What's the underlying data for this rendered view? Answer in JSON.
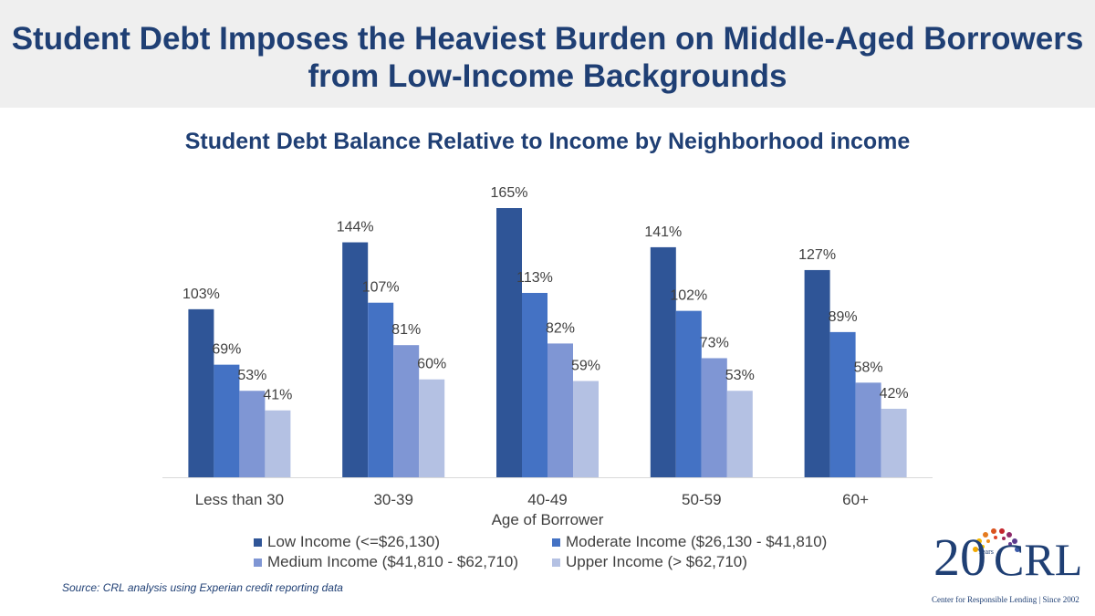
{
  "header": {
    "title_line1": "Student Debt Imposes the Heaviest Burden on Middle-Aged Borrowers",
    "title_line2": "from Low-Income Backgrounds"
  },
  "chart_data": {
    "type": "bar",
    "title": "Student Debt Balance Relative to Income by Neighborhood income",
    "xlabel": "Age of Borrower",
    "ylabel": "",
    "ylim": [
      0,
      180
    ],
    "categories": [
      "Less than 30",
      "30-39",
      "40-49",
      "50-59",
      "60+"
    ],
    "series": [
      {
        "name": "Low Income (<=$26,130)",
        "color": "#2f5597",
        "values": [
          103,
          144,
          165,
          141,
          127
        ],
        "labels": [
          "103%",
          "144%",
          "165%",
          "141%",
          "127%"
        ]
      },
      {
        "name": "Moderate Income ($26,130 - $41,810)",
        "color": "#4472c4",
        "values": [
          69,
          107,
          113,
          102,
          89
        ],
        "labels": [
          "69%",
          "107%",
          "113%",
          "102%",
          "89%"
        ]
      },
      {
        "name": "Medium Income ($41,810 - $62,710)",
        "color": "#7f96d4",
        "values": [
          53,
          81,
          82,
          73,
          58
        ],
        "labels": [
          "53%",
          "81%",
          "82%",
          "73%",
          "58%"
        ]
      },
      {
        "name": "Upper Income (> $62,710)",
        "color": "#b4c1e3",
        "values": [
          41,
          60,
          59,
          53,
          42
        ],
        "labels": [
          "41%",
          "60%",
          "59%",
          "53%",
          "42%"
        ]
      }
    ],
    "legend_position": "bottom",
    "grid": false
  },
  "footer": {
    "source": "Source: CRL analysis using Experian credit reporting data"
  },
  "logo": {
    "number": "20",
    "years_text": "Years",
    "brand": "CRL",
    "tagline": "Center for Responsible Lending | Since 2002"
  }
}
